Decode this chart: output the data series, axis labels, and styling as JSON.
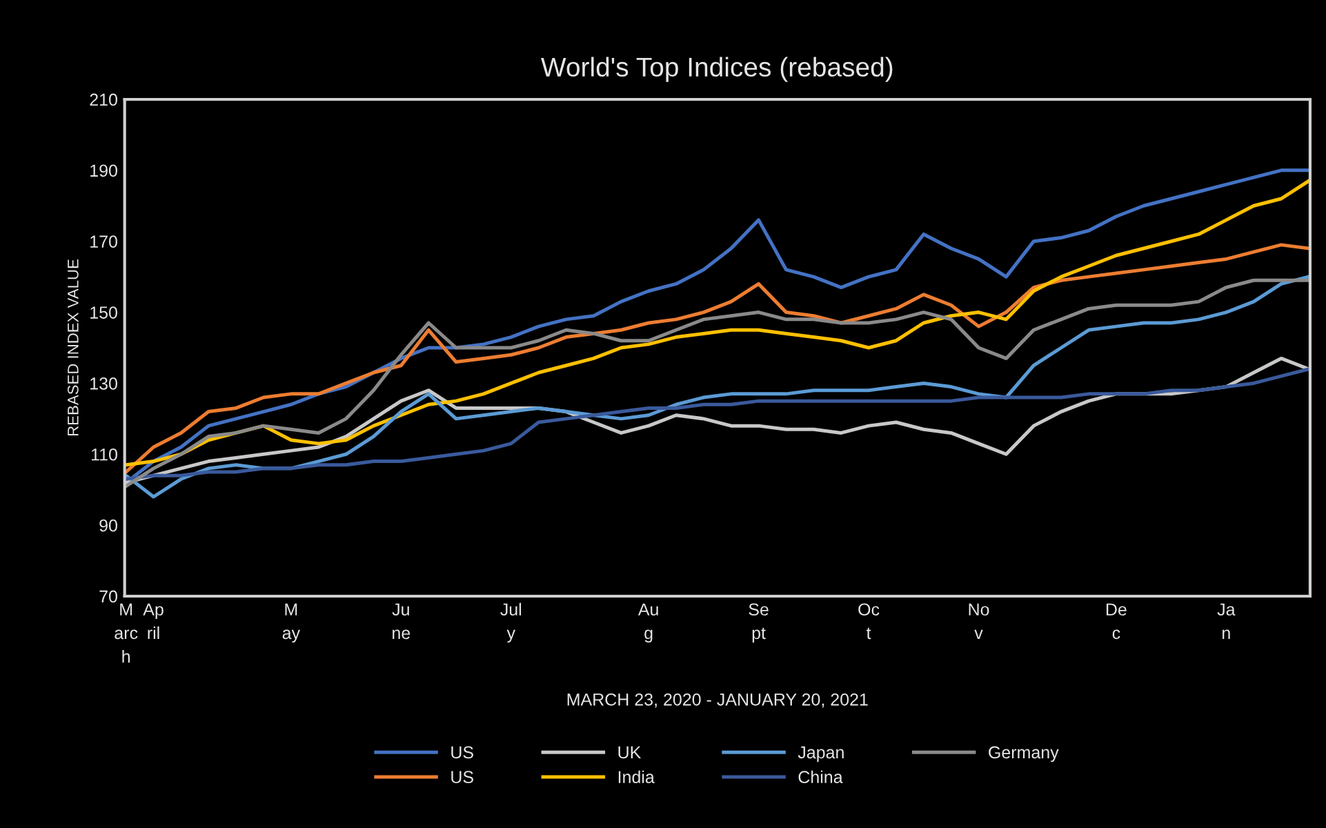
{
  "chart_data": {
    "type": "line",
    "title": "World's Top Indices (rebased)",
    "xlabel": "MARCH 23, 2020 - JANUARY 20, 2021",
    "ylabel": "REBASED INDEX VALUE",
    "categories": [
      "M\narc\nh",
      "Ap\nril",
      null,
      null,
      null,
      null,
      "M\nay",
      null,
      null,
      null,
      "Ju\nne",
      null,
      null,
      null,
      "Jul\ny",
      null,
      null,
      null,
      null,
      "Au\ng",
      null,
      null,
      null,
      "Se\npt",
      null,
      null,
      null,
      "Oc\nt",
      null,
      null,
      null,
      "No\nv",
      null,
      null,
      null,
      null,
      "De\nc",
      null,
      null,
      null,
      "Ja\nn",
      null,
      null,
      null
    ],
    "ylim": [
      70,
      210
    ],
    "yticks": [
      70,
      90,
      110,
      130,
      150,
      170,
      190,
      210
    ],
    "grid": false,
    "legend": "bottom",
    "marker": "none",
    "line_style": "solid",
    "series": [
      {
        "name": "US",
        "color": "#4472c4",
        "values": [
          102,
          108,
          112,
          118,
          120,
          122,
          124,
          127,
          129,
          133,
          137,
          140,
          140,
          141,
          143,
          146,
          148,
          149,
          153,
          156,
          158,
          162,
          168,
          176,
          162,
          160,
          157,
          160,
          162,
          172,
          168,
          165,
          160,
          170,
          171,
          173,
          177,
          180,
          182,
          184,
          186,
          188,
          190,
          190
        ]
      },
      {
        "name": "US",
        "color": "#ed7d31",
        "values": [
          105,
          112,
          116,
          122,
          123,
          126,
          127,
          127,
          130,
          133,
          135,
          145,
          136,
          137,
          138,
          140,
          143,
          144,
          145,
          147,
          148,
          150,
          153,
          158,
          150,
          149,
          147,
          149,
          151,
          155,
          152,
          146,
          150,
          157,
          159,
          160,
          161,
          162,
          163,
          164,
          165,
          167,
          169,
          168
        ]
      },
      {
        "name": "UK",
        "color": "#c8c8c8",
        "values": [
          102,
          104,
          106,
          108,
          109,
          110,
          111,
          112,
          115,
          120,
          125,
          128,
          123,
          123,
          123,
          123,
          122,
          119,
          116,
          118,
          121,
          120,
          118,
          118,
          117,
          117,
          116,
          118,
          119,
          117,
          116,
          113,
          110,
          118,
          122,
          125,
          127,
          127,
          127,
          128,
          129,
          133,
          137,
          134
        ]
      },
      {
        "name": "India",
        "color": "#ffc000",
        "values": [
          107,
          108,
          110,
          114,
          116,
          118,
          114,
          113,
          114,
          118,
          121,
          124,
          125,
          127,
          130,
          133,
          135,
          137,
          140,
          141,
          143,
          144,
          145,
          145,
          144,
          143,
          142,
          140,
          142,
          147,
          149,
          150,
          148,
          156,
          160,
          163,
          166,
          168,
          170,
          172,
          176,
          180,
          182,
          187
        ]
      },
      {
        "name": "Japan",
        "color": "#5b9bd5",
        "values": [
          104,
          98,
          103,
          106,
          107,
          106,
          106,
          108,
          110,
          115,
          122,
          127,
          120,
          121,
          122,
          123,
          122,
          121,
          120,
          121,
          124,
          126,
          127,
          127,
          127,
          128,
          128,
          128,
          129,
          130,
          129,
          127,
          126,
          135,
          140,
          145,
          146,
          147,
          147,
          148,
          150,
          153,
          158,
          160
        ]
      },
      {
        "name": "China",
        "color": "#3a5a9c",
        "values": [
          103,
          104,
          104,
          105,
          105,
          106,
          106,
          107,
          107,
          108,
          108,
          109,
          110,
          111,
          113,
          119,
          120,
          121,
          122,
          123,
          123,
          124,
          124,
          125,
          125,
          125,
          125,
          125,
          125,
          125,
          125,
          126,
          126,
          126,
          126,
          127,
          127,
          127,
          128,
          128,
          129,
          130,
          132,
          134
        ]
      },
      {
        "name": "Germany",
        "color": "#8a8a8a",
        "values": [
          101,
          106,
          110,
          115,
          116,
          118,
          117,
          116,
          120,
          128,
          138,
          147,
          140,
          140,
          140,
          142,
          145,
          144,
          142,
          142,
          145,
          148,
          149,
          150,
          148,
          148,
          147,
          147,
          148,
          150,
          148,
          140,
          137,
          145,
          148,
          151,
          152,
          152,
          152,
          153,
          157,
          159,
          159,
          159
        ]
      }
    ]
  }
}
